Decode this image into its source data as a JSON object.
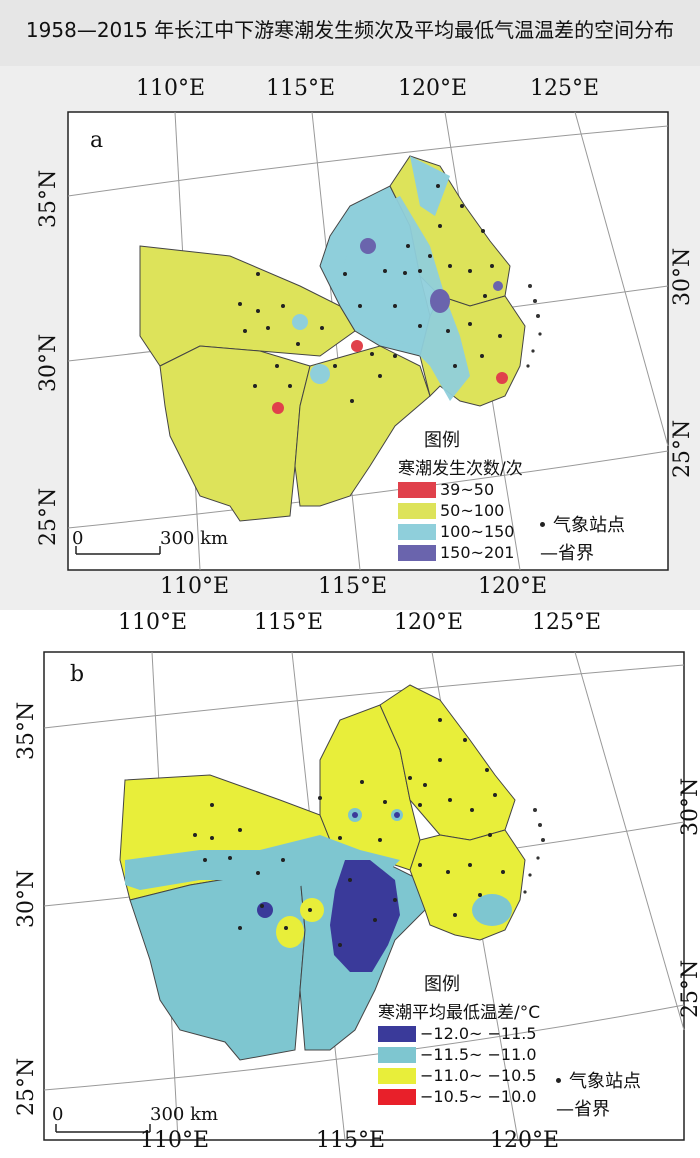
{
  "title": "1958—2015 年长江中下游寒潮发生频次及平均最低气温温差的空间分布",
  "panel_a": {
    "label": "a",
    "lon_top": [
      "110°E",
      "115°E",
      "120°E",
      "125°E"
    ],
    "lon_bottom": [
      "110°E",
      "115°E",
      "120°E"
    ],
    "lat_left": [
      "35°N",
      "30°N",
      "25°N"
    ],
    "lat_right": [
      "30°N",
      "25°N"
    ],
    "legend_title": "图例",
    "legend_subtitle": "寒潮发生次数/次",
    "legend_items": [
      {
        "label": "39~50",
        "color": "#e0414b"
      },
      {
        "label": "50~100",
        "color": "#dde35a"
      },
      {
        "label": "100~150",
        "color": "#8fcfdb"
      },
      {
        "label": "150~201",
        "color": "#6a64ad"
      }
    ],
    "station_label": "气象站点",
    "boundary_label": "—省界",
    "scale_zero": "0",
    "scale_label": "300 km"
  },
  "panel_b": {
    "label": "b",
    "lon_top": [
      "110°E",
      "115°E",
      "120°E",
      "125°E"
    ],
    "lon_bottom": [
      "110°E",
      "115°E",
      "120°E"
    ],
    "lat_left": [
      "35°N",
      "30°N",
      "25°N"
    ],
    "lat_right": [
      "30°N",
      "25°N"
    ],
    "legend_title": "图例",
    "legend_subtitle": "寒潮平均最低温差/°C",
    "legend_items": [
      {
        "label": "−12.0~ −11.5",
        "color": "#3a3a9a"
      },
      {
        "label": "−11.5~ −11.0",
        "color": "#7ec6d0"
      },
      {
        "label": "−11.0~ −10.5",
        "color": "#e8ee3a"
      },
      {
        "label": "−10.5~ −10.0",
        "color": "#e8202a"
      }
    ],
    "station_label": "气象站点",
    "boundary_label": "—省界",
    "scale_zero": "0",
    "scale_label": "300 km"
  }
}
